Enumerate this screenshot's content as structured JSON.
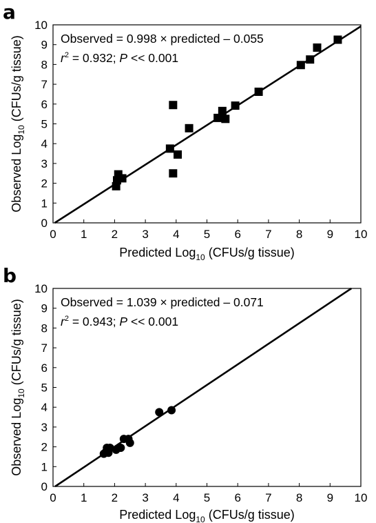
{
  "chart_data": [
    {
      "panel_label": "a",
      "type": "scatter",
      "marker": "square",
      "color": "#000000",
      "xlabel": {
        "pre": "Predicted Log",
        "sub": "10",
        "post": " (CFUs/g tissue)"
      },
      "ylabel": {
        "pre": "Observed Log",
        "sub": "10",
        "post": " (CFUs/g tissue)"
      },
      "xlim": [
        0,
        10
      ],
      "ylim": [
        0,
        10
      ],
      "x_ticks": [
        "0",
        "1",
        "2",
        "3",
        "4",
        "5",
        "6",
        "7",
        "8",
        "9",
        "10"
      ],
      "y_ticks": [
        "0",
        "1",
        "2",
        "3",
        "4",
        "5",
        "6",
        "7",
        "8",
        "9",
        "10"
      ],
      "grid": false,
      "annotation_line1": "Observed = 0.998 × predicted – 0.055",
      "annotation_r": "r",
      "annotation_sup": "2",
      "annotation_mid": " = 0.932; ",
      "annotation_p": "P",
      "annotation_end": " << 0.001",
      "fit": {
        "slope": 0.998,
        "intercept": -0.055
      },
      "points": [
        {
          "x": 2.05,
          "y": 1.85
        },
        {
          "x": 2.08,
          "y": 2.15
        },
        {
          "x": 2.12,
          "y": 2.45
        },
        {
          "x": 2.25,
          "y": 2.25
        },
        {
          "x": 3.8,
          "y": 3.75
        },
        {
          "x": 3.9,
          "y": 2.5
        },
        {
          "x": 3.9,
          "y": 5.95
        },
        {
          "x": 4.05,
          "y": 3.45
        },
        {
          "x": 4.42,
          "y": 4.78
        },
        {
          "x": 5.35,
          "y": 5.3
        },
        {
          "x": 5.5,
          "y": 5.65
        },
        {
          "x": 5.6,
          "y": 5.25
        },
        {
          "x": 5.92,
          "y": 5.92
        },
        {
          "x": 6.68,
          "y": 6.62
        },
        {
          "x": 8.05,
          "y": 7.97
        },
        {
          "x": 8.35,
          "y": 8.25
        },
        {
          "x": 8.58,
          "y": 8.85
        },
        {
          "x": 9.25,
          "y": 9.25
        }
      ]
    },
    {
      "panel_label": "b",
      "type": "scatter",
      "marker": "circle",
      "color": "#000000",
      "xlabel": {
        "pre": "Predicted Log",
        "sub": "10",
        "post": " (CFUs/g tissue)"
      },
      "ylabel": {
        "pre": "Observed Log",
        "sub": "10",
        "post": " (CFUs/g tissue)"
      },
      "xlim": [
        0,
        10
      ],
      "ylim": [
        0,
        10
      ],
      "x_ticks": [
        "0",
        "1",
        "2",
        "3",
        "4",
        "5",
        "6",
        "7",
        "8",
        "9",
        "10"
      ],
      "y_ticks": [
        "0",
        "1",
        "2",
        "3",
        "4",
        "5",
        "6",
        "7",
        "8",
        "9",
        "10"
      ],
      "grid": false,
      "annotation_line1": "Observed = 1.039 × predicted – 0.071",
      "annotation_r": "r",
      "annotation_sup": "2",
      "annotation_mid": " = 0.943; ",
      "annotation_p": "P",
      "annotation_end": " << 0.001",
      "fit": {
        "slope": 1.039,
        "intercept": -0.071
      },
      "points": [
        {
          "x": 1.65,
          "y": 1.65
        },
        {
          "x": 1.72,
          "y": 1.75
        },
        {
          "x": 1.75,
          "y": 1.95
        },
        {
          "x": 1.8,
          "y": 1.7
        },
        {
          "x": 1.85,
          "y": 1.95
        },
        {
          "x": 2.05,
          "y": 1.85
        },
        {
          "x": 2.2,
          "y": 1.95
        },
        {
          "x": 2.3,
          "y": 2.4
        },
        {
          "x": 2.45,
          "y": 2.4
        },
        {
          "x": 2.5,
          "y": 2.2
        },
        {
          "x": 3.45,
          "y": 3.75
        },
        {
          "x": 3.85,
          "y": 3.85
        }
      ]
    }
  ]
}
